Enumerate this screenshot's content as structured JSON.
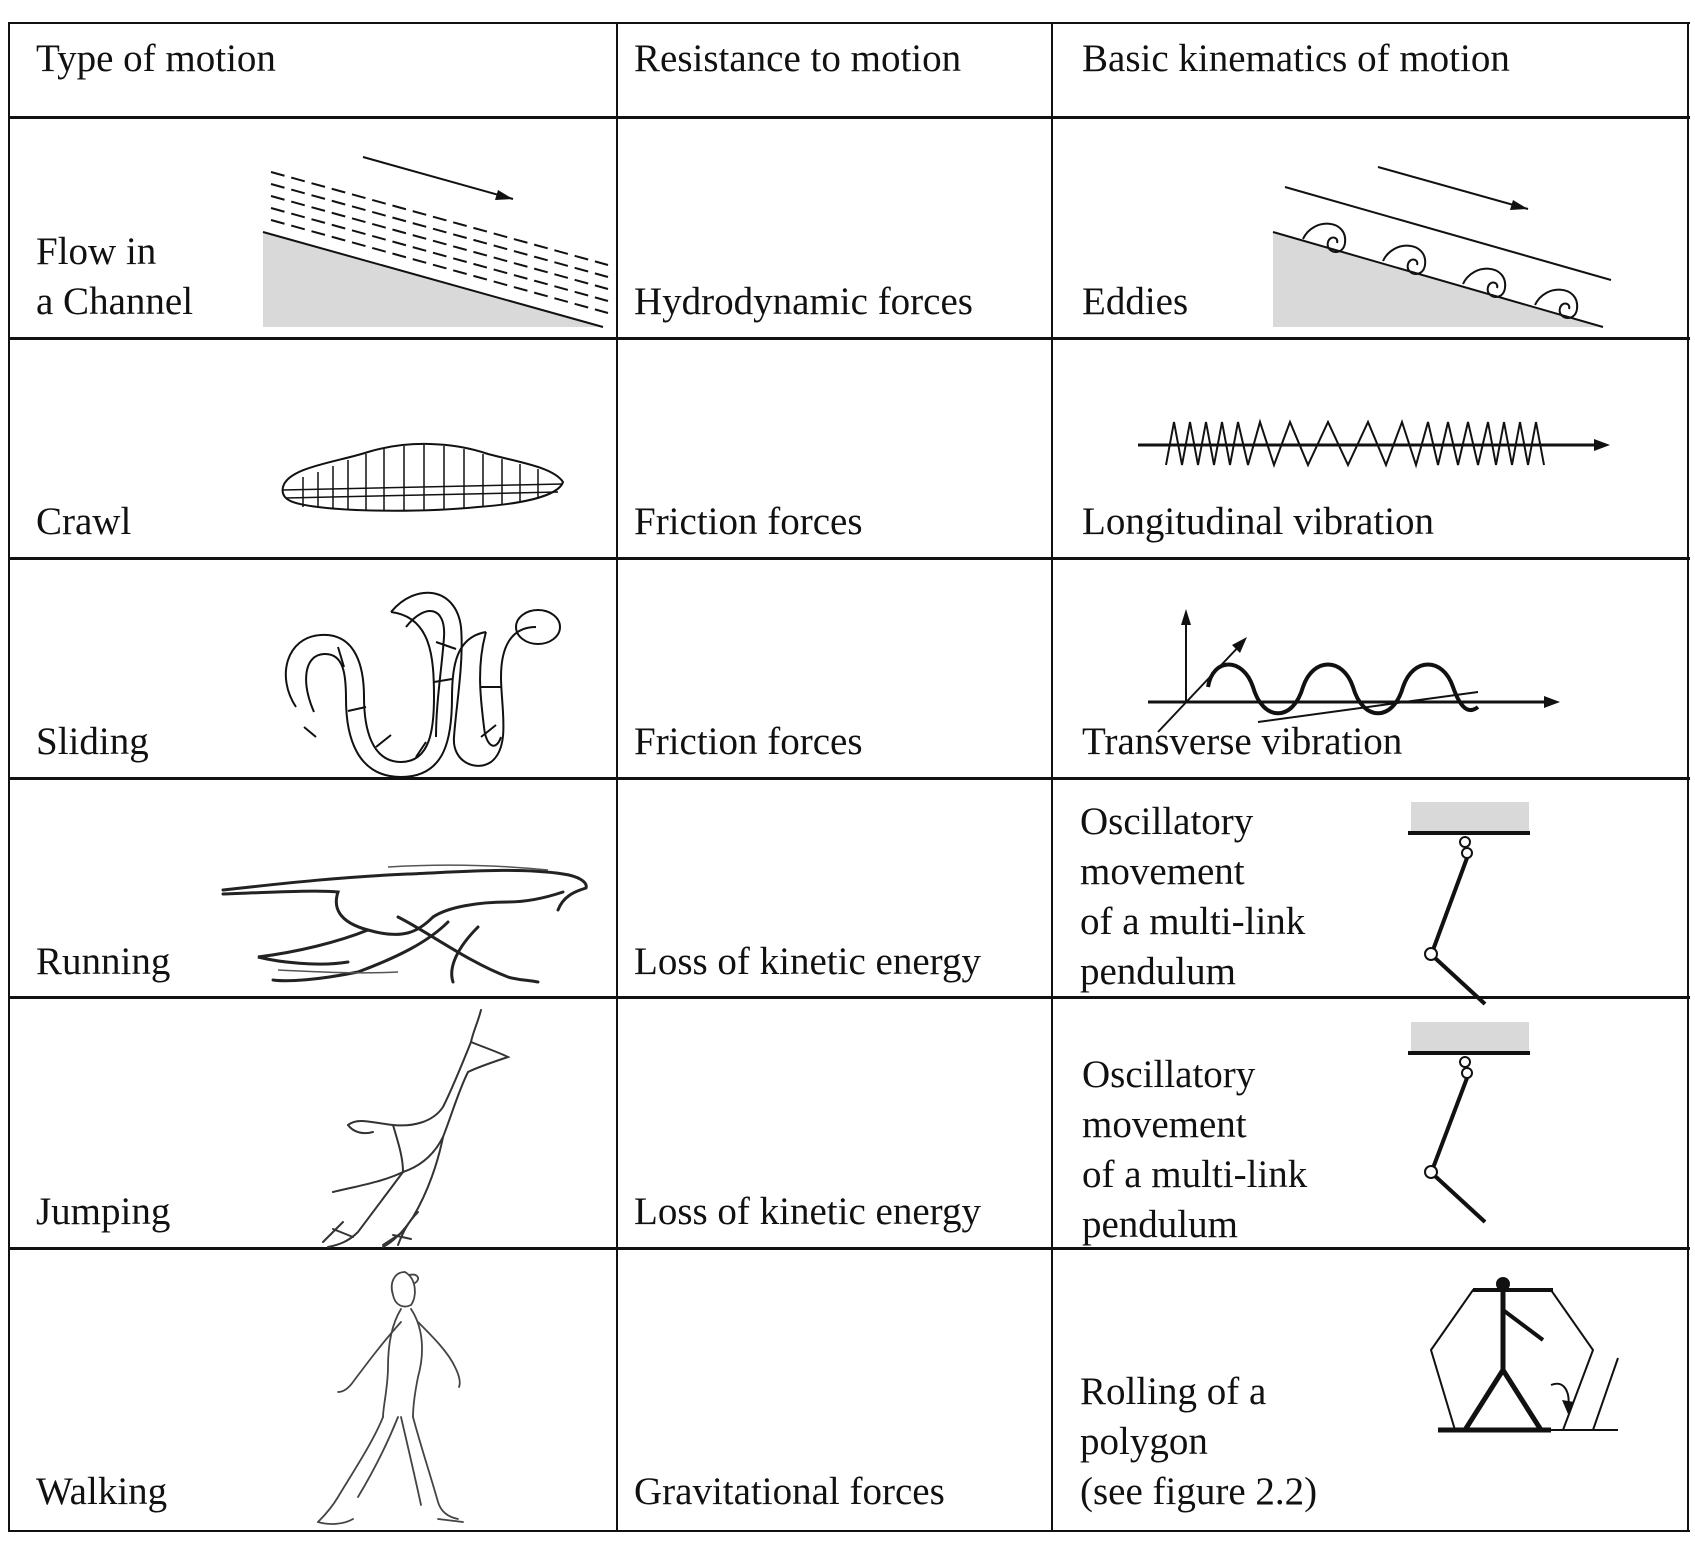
{
  "headers": {
    "type": "Type of motion",
    "resistance": "Resistance to motion",
    "kinematics": "Basic kinematics of motion"
  },
  "rows": [
    {
      "type_lines": [
        "Flow in",
        "a Channel"
      ],
      "resistance": "Hydrodynamic forces",
      "kinematics_lines": [
        "Eddies"
      ],
      "type_icon": "channel-flow-icon",
      "kinematics_icon": "eddies-icon"
    },
    {
      "type_lines": [
        "Crawl"
      ],
      "resistance": "Friction forces",
      "kinematics_lines": [
        "Longitudinal vibration"
      ],
      "type_icon": "caterpillar-icon",
      "kinematics_icon": "longitudinal-vibration-icon"
    },
    {
      "type_lines": [
        "Sliding"
      ],
      "resistance": "Friction forces",
      "kinematics_lines": [
        "Transverse vibration"
      ],
      "type_icon": "snake-icon",
      "kinematics_icon": "transverse-vibration-icon"
    },
    {
      "type_lines": [
        "Running"
      ],
      "resistance": "Loss of kinetic energy",
      "kinematics_lines": [
        "Oscillatory",
        "movement",
        "of a multi-link",
        "pendulum"
      ],
      "type_icon": "running-cheetah-icon",
      "kinematics_icon": "multi-link-pendulum-icon"
    },
    {
      "type_lines": [
        "Jumping"
      ],
      "resistance": "Loss of kinetic energy",
      "kinematics_lines": [
        "Oscillatory",
        "movement",
        "of a multi-link",
        "pendulum"
      ],
      "type_icon": "jumping-antelope-icon",
      "kinematics_icon": "multi-link-pendulum-icon"
    },
    {
      "type_lines": [
        "Walking"
      ],
      "resistance": "Gravitational forces",
      "kinematics_lines": [
        "Rolling of a",
        "polygon",
        "(see figure 2.2)"
      ],
      "type_icon": "walking-person-icon",
      "kinematics_icon": "rolling-polygon-icon"
    }
  ]
}
